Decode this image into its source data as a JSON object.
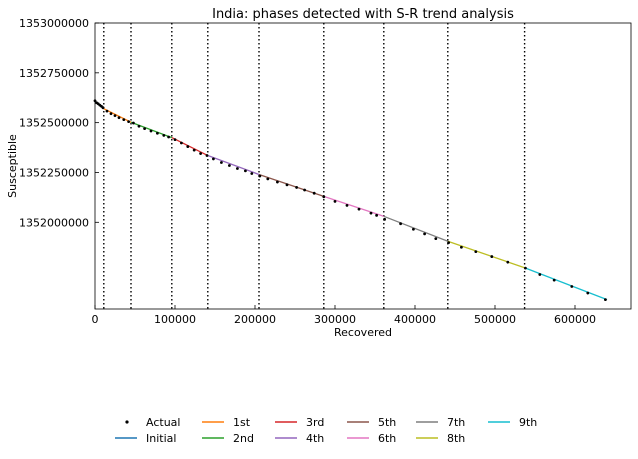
{
  "chart_data": {
    "type": "line",
    "title": "India: phases detected with S-R trend analysis",
    "xlabel": "Recovered",
    "ylabel": "Susceptible",
    "xlim": [
      0,
      670000
    ],
    "ylim": [
      1351565000,
      1353000000
    ],
    "x_ticks": [
      0,
      100000,
      200000,
      300000,
      400000,
      500000,
      600000
    ],
    "x_tick_labels": [
      "0",
      "100000",
      "200000",
      "300000",
      "400000",
      "500000",
      "600000"
    ],
    "y_ticks": [
      1352000000,
      1352250000,
      1352500000,
      1352750000,
      1353000000
    ],
    "y_tick_labels": [
      "1352000000",
      "1352250000",
      "1352500000",
      "1352750000",
      "1353000000"
    ],
    "change_points": [
      11000,
      45000,
      96000,
      141000,
      205000,
      286000,
      361000,
      441000,
      537000
    ],
    "grid": false,
    "legend_position": "bottom",
    "legend_entries": [
      "Actual",
      "Initial",
      "1st",
      "2nd",
      "3rd",
      "4th",
      "5th",
      "6th",
      "7th",
      "8th",
      "9th"
    ],
    "actual": {
      "name": "Actual",
      "color": "#000000",
      "points": [
        [
          0,
          1352610000
        ],
        [
          2000,
          1352600000
        ],
        [
          4000,
          1352595000
        ],
        [
          6000,
          1352588000
        ],
        [
          8000,
          1352582000
        ],
        [
          10000,
          1352575000
        ],
        [
          15000,
          1352558000
        ],
        [
          20000,
          1352545000
        ],
        [
          25000,
          1352535000
        ],
        [
          30000,
          1352525000
        ],
        [
          36000,
          1352515000
        ],
        [
          42000,
          1352505000
        ],
        [
          48000,
          1352498000
        ],
        [
          55000,
          1352482000
        ],
        [
          62000,
          1352470000
        ],
        [
          70000,
          1352458000
        ],
        [
          78000,
          1352447000
        ],
        [
          86000,
          1352436000
        ],
        [
          92000,
          1352428000
        ],
        [
          100000,
          1352415000
        ],
        [
          108000,
          1352398000
        ],
        [
          116000,
          1352380000
        ],
        [
          124000,
          1352362000
        ],
        [
          132000,
          1352345000
        ],
        [
          140000,
          1352335000
        ],
        [
          148000,
          1352318000
        ],
        [
          158000,
          1352300000
        ],
        [
          168000,
          1352285000
        ],
        [
          178000,
          1352270000
        ],
        [
          188000,
          1352258000
        ],
        [
          196000,
          1352245000
        ],
        [
          206000,
          1352232000
        ],
        [
          216000,
          1352218000
        ],
        [
          228000,
          1352202000
        ],
        [
          240000,
          1352188000
        ],
        [
          252000,
          1352175000
        ],
        [
          262000,
          1352162000
        ],
        [
          274000,
          1352146000
        ],
        [
          286000,
          1352128000
        ],
        [
          300000,
          1352105000
        ],
        [
          315000,
          1352085000
        ],
        [
          330000,
          1352066000
        ],
        [
          345000,
          1352046000
        ],
        [
          352000,
          1352035000
        ],
        [
          362000,
          1352015000
        ],
        [
          382000,
          1351993000
        ],
        [
          398000,
          1351965000
        ],
        [
          412000,
          1351942000
        ],
        [
          426000,
          1351918000
        ],
        [
          442000,
          1351898000
        ],
        [
          458000,
          1351875000
        ],
        [
          476000,
          1351853000
        ],
        [
          496000,
          1351828000
        ],
        [
          516000,
          1351800000
        ],
        [
          538000,
          1351770000
        ],
        [
          556000,
          1351738000
        ],
        [
          574000,
          1351710000
        ],
        [
          596000,
          1351678000
        ],
        [
          616000,
          1351645000
        ],
        [
          638000,
          1351612000
        ]
      ]
    },
    "series": [
      {
        "name": "Initial",
        "color": "#1f77b4",
        "x": [
          0,
          11000
        ],
        "y": [
          1352605000,
          1352570000
        ]
      },
      {
        "name": "1st",
        "color": "#ff7f0e",
        "x": [
          11000,
          45000
        ],
        "y": [
          1352570000,
          1352502000
        ]
      },
      {
        "name": "2nd",
        "color": "#2ca02c",
        "x": [
          45000,
          96000
        ],
        "y": [
          1352502000,
          1352425000
        ]
      },
      {
        "name": "3rd",
        "color": "#d62728",
        "x": [
          96000,
          141000
        ],
        "y": [
          1352425000,
          1352335000
        ]
      },
      {
        "name": "4th",
        "color": "#9467bd",
        "x": [
          141000,
          205000
        ],
        "y": [
          1352335000,
          1352240000
        ]
      },
      {
        "name": "5th",
        "color": "#8c564b",
        "x": [
          205000,
          286000
        ],
        "y": [
          1352240000,
          1352130000
        ]
      },
      {
        "name": "6th",
        "color": "#e377c2",
        "x": [
          286000,
          361000
        ],
        "y": [
          1352130000,
          1352030000
        ]
      },
      {
        "name": "7th",
        "color": "#7f7f7f",
        "x": [
          361000,
          441000
        ],
        "y": [
          1352030000,
          1351905000
        ]
      },
      {
        "name": "8th",
        "color": "#bcbd22",
        "x": [
          441000,
          537000
        ],
        "y": [
          1351905000,
          1351772000
        ]
      },
      {
        "name": "9th",
        "color": "#17becf",
        "x": [
          537000,
          640000
        ],
        "y": [
          1351772000,
          1351612000
        ]
      }
    ]
  }
}
